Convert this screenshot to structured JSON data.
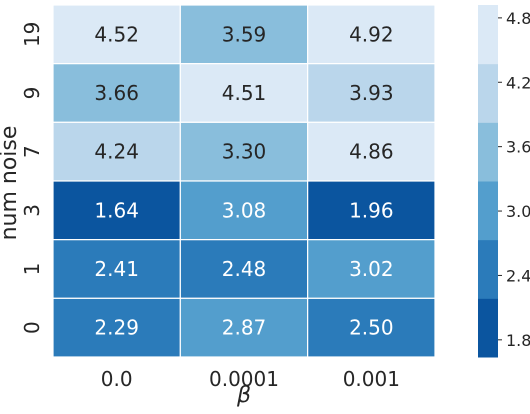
{
  "chart_data": {
    "type": "heatmap",
    "xlabel": "β",
    "ylabel": "num noise",
    "x_categories": [
      "0.0",
      "0.0001",
      "0.001"
    ],
    "y_categories": [
      "19",
      "9",
      "7",
      "3",
      "1",
      "0"
    ],
    "values": [
      [
        4.52,
        3.59,
        4.92
      ],
      [
        3.66,
        4.51,
        3.93
      ],
      [
        4.24,
        3.3,
        4.86
      ],
      [
        1.64,
        3.08,
        1.96
      ],
      [
        2.41,
        2.48,
        3.02
      ],
      [
        2.29,
        2.87,
        2.5
      ]
    ],
    "value_labels": [
      [
        "4.52",
        "3.59",
        "4.92"
      ],
      [
        "3.66",
        "4.51",
        "3.93"
      ],
      [
        "4.24",
        "3.30",
        "4.86"
      ],
      [
        "1.64",
        "3.08",
        "1.96"
      ],
      [
        "2.41",
        "2.48",
        "3.02"
      ],
      [
        "2.29",
        "2.87",
        "2.50"
      ]
    ],
    "colorbar": {
      "range": [
        1.64,
        4.92
      ],
      "ticks": [
        1.8,
        2.4,
        3.0,
        3.6,
        4.2,
        4.8
      ],
      "tick_labels": [
        "1.8",
        "2.4",
        "3.0",
        "3.6",
        "4.2",
        "4.8"
      ],
      "bins": 6,
      "colors_low_to_high": [
        "#0b559f",
        "#2b7bba",
        "#539ecd",
        "#89bedc",
        "#bad6eb",
        "#dbe9f6"
      ]
    },
    "grid": false,
    "colorbar_position": "right"
  }
}
